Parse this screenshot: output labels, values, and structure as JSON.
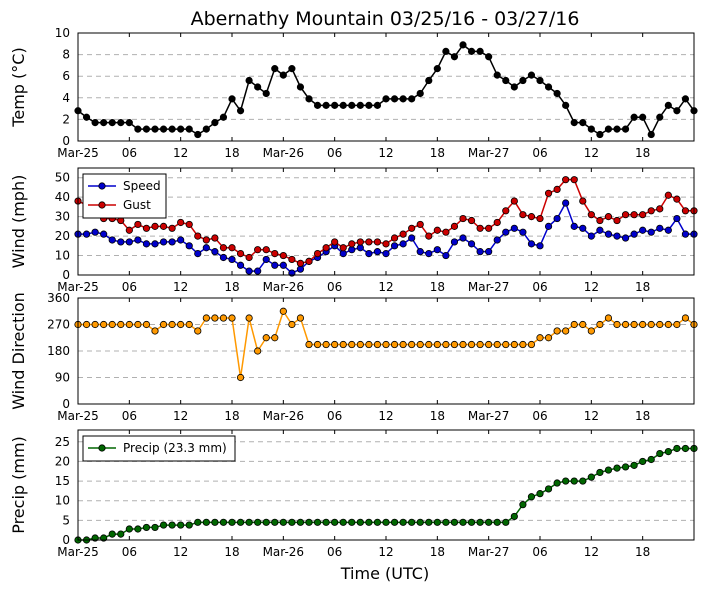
{
  "chart_data": {
    "type": "line",
    "title": "Abernathy Mountain 03/25/16 - 03/27/16",
    "xlabel": "Time (UTC)",
    "x_hours": [
      0,
      1,
      2,
      3,
      4,
      5,
      6,
      7,
      8,
      9,
      10,
      11,
      12,
      13,
      14,
      15,
      16,
      17,
      18,
      19,
      20,
      21,
      22,
      23,
      24,
      25,
      26,
      27,
      28,
      29,
      30,
      31,
      32,
      33,
      34,
      35,
      36,
      37,
      38,
      39,
      40,
      41,
      42,
      43,
      44,
      45,
      46,
      47,
      48,
      49,
      50,
      51,
      52,
      53,
      54,
      55,
      56,
      57,
      58,
      59,
      60,
      61,
      62,
      63,
      64,
      65,
      66,
      67,
      68,
      69,
      70,
      71,
      72
    ],
    "x_tick_labels": [
      "Mar-25",
      "06",
      "12",
      "18",
      "Mar-26",
      "06",
      "12",
      "18",
      "Mar-27",
      "06",
      "12",
      "18"
    ],
    "panels": [
      {
        "ylabel": "Temp (°C)",
        "ylim": [
          0,
          10
        ],
        "yticks": [
          "0",
          "2",
          "4",
          "6",
          "8",
          "10"
        ],
        "series": [
          {
            "name": "Temp",
            "color": "#000000",
            "values": [
              2.8,
              2.2,
              1.7,
              1.7,
              1.7,
              1.7,
              1.7,
              1.1,
              1.1,
              1.1,
              1.1,
              1.1,
              1.1,
              1.1,
              0.6,
              1.1,
              1.7,
              2.2,
              3.9,
              2.8,
              5.6,
              5.0,
              4.4,
              6.7,
              6.1,
              6.7,
              5.0,
              3.9,
              3.3,
              3.3,
              3.3,
              3.3,
              3.3,
              3.3,
              3.3,
              3.3,
              3.9,
              3.9,
              3.9,
              3.9,
              4.4,
              5.6,
              6.7,
              8.3,
              7.8,
              8.9,
              8.3,
              8.3,
              7.8,
              6.1,
              5.6,
              5.0,
              5.6,
              6.1,
              5.6,
              5.0,
              4.4,
              3.3,
              1.7,
              1.7,
              1.1,
              0.6,
              1.1,
              1.1,
              1.1,
              2.2,
              2.2,
              0.6,
              2.2,
              3.3,
              2.8,
              3.9,
              2.8
            ]
          }
        ]
      },
      {
        "ylabel": "Wind (mph)",
        "ylim": [
          0,
          55
        ],
        "yticks": [
          "0",
          "10",
          "20",
          "30",
          "40",
          "50"
        ],
        "legend": "top-left",
        "series": [
          {
            "name": "Speed",
            "color": "#0000cc",
            "values": [
              21,
              21,
              22,
              21,
              18,
              17,
              17,
              18,
              16,
              16,
              17,
              17,
              18,
              15,
              11,
              14,
              12,
              9,
              8,
              5,
              2,
              2,
              8,
              5,
              5,
              1,
              3,
              7,
              9,
              12,
              15,
              11,
              13,
              14,
              11,
              12,
              11,
              15,
              16,
              19,
              12,
              11,
              13,
              10,
              17,
              19,
              16,
              12,
              12,
              18,
              22,
              24,
              22,
              16,
              15,
              25,
              29,
              37,
              25,
              24,
              20,
              23,
              21,
              20,
              19,
              21,
              23,
              22,
              24,
              23,
              29,
              21,
              21
            ]
          },
          {
            "name": "Gust",
            "color": "#cc0000",
            "values": [
              38,
              36,
              35,
              29,
              29,
              28,
              23,
              26,
              24,
              25,
              25,
              24,
              27,
              26,
              20,
              18,
              19,
              14,
              14,
              11,
              9,
              13,
              13,
              11,
              10,
              8,
              6,
              7,
              11,
              14,
              17,
              14,
              16,
              17,
              17,
              17,
              16,
              19,
              21,
              24,
              26,
              20,
              23,
              22,
              25,
              29,
              28,
              24,
              24,
              27,
              33,
              38,
              31,
              30,
              29,
              42,
              44,
              49,
              49,
              38,
              31,
              28,
              30,
              28,
              31,
              31,
              31,
              33,
              34,
              41,
              39,
              33,
              33
            ]
          }
        ]
      },
      {
        "ylabel": "Wind Direction",
        "ylim": [
          0,
          360
        ],
        "yticks": [
          "0",
          "90",
          "180",
          "270",
          "360"
        ],
        "series": [
          {
            "name": "Direction",
            "color": "#ff9900",
            "values": [
              270,
              270,
              270,
              270,
              270,
              270,
              270,
              270,
              270,
              248,
              270,
              270,
              270,
              270,
              248,
              292,
              292,
              292,
              292,
              90,
              292,
              180,
              225,
              225,
              315,
              270,
              292,
              202,
              202,
              202,
              202,
              202,
              202,
              202,
              202,
              202,
              202,
              202,
              202,
              202,
              202,
              202,
              202,
              202,
              202,
              202,
              202,
              202,
              202,
              202,
              202,
              202,
              202,
              202,
              225,
              225,
              248,
              248,
              270,
              270,
              248,
              270,
              292,
              270,
              270,
              270,
              270,
              270,
              270,
              270,
              270,
              292,
              270
            ]
          }
        ]
      },
      {
        "ylabel": "Precip (mm)",
        "ylim": [
          0,
          28
        ],
        "yticks": [
          "0",
          "5",
          "10",
          "15",
          "20",
          "25"
        ],
        "legend": "top-left",
        "series": [
          {
            "name": "Precip (23.3 mm)",
            "color": "#006600",
            "values": [
              0,
              0,
              0.5,
              0.5,
              1.5,
              1.5,
              2.8,
              2.8,
              3.2,
              3.2,
              3.8,
              3.8,
              3.8,
              3.8,
              4.5,
              4.5,
              4.5,
              4.5,
              4.5,
              4.5,
              4.5,
              4.5,
              4.5,
              4.5,
              4.5,
              4.5,
              4.5,
              4.5,
              4.5,
              4.5,
              4.5,
              4.5,
              4.5,
              4.5,
              4.5,
              4.5,
              4.5,
              4.5,
              4.5,
              4.5,
              4.5,
              4.5,
              4.5,
              4.5,
              4.5,
              4.5,
              4.5,
              4.5,
              4.5,
              4.5,
              4.5,
              6.0,
              9.0,
              11.0,
              11.8,
              13.0,
              14.5,
              15.0,
              15.0,
              15.0,
              16.0,
              17.2,
              17.8,
              18.3,
              18.6,
              19.0,
              20.0,
              20.5,
              22.0,
              22.5,
              23.3,
              23.3,
              23.3
            ]
          }
        ]
      }
    ]
  }
}
